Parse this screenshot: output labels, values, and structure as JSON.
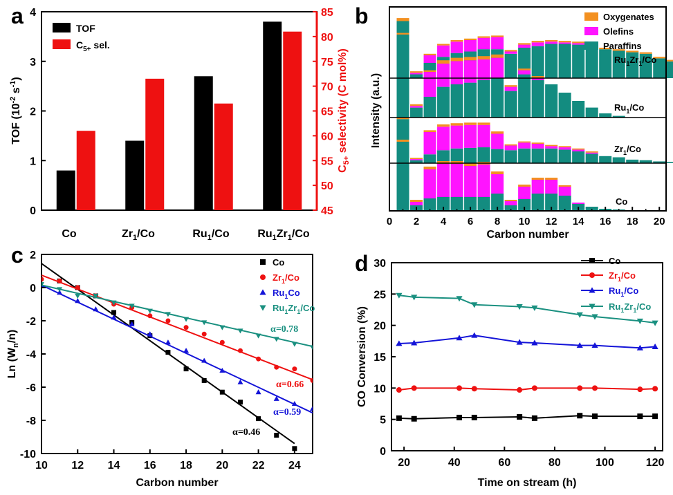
{
  "chart_data": [
    {
      "panel": "a",
      "type": "bar",
      "categories": [
        "Co",
        "Zr1/Co",
        "Ru1/Co",
        "Ru1Zr1/Co"
      ],
      "series": [
        {
          "name": "TOF",
          "axis": "left",
          "color": "#000000",
          "values": [
            0.8,
            1.4,
            2.7,
            3.8
          ]
        },
        {
          "name": "C5+ sel.",
          "axis": "right",
          "color": "#ee1111",
          "values": [
            61.0,
            71.5,
            66.5,
            81.0
          ]
        }
      ],
      "ylabel": "TOF (10-2 s-1)",
      "ylabel_right": "C5+ selectivity (C mol%)",
      "ylim": [
        0,
        4
      ],
      "ylim_right": [
        45,
        85
      ],
      "yticks": [
        "0",
        "1",
        "2",
        "3",
        "4"
      ],
      "yticks_right": [
        "45",
        "50",
        "55",
        "60",
        "65",
        "70",
        "75",
        "80",
        "85"
      ],
      "legend": "top-left"
    },
    {
      "panel": "b",
      "type": "bar",
      "stacked": true,
      "xlabel": "Carbon number",
      "ylabel": "Intensity (a.u.)",
      "xlim": [
        0,
        20.5
      ],
      "xticks": [
        "0",
        "2",
        "4",
        "6",
        "8",
        "10",
        "12",
        "14",
        "16",
        "18",
        "20"
      ],
      "legend": "top-right",
      "components": [
        {
          "name": "Oxygenates",
          "color": "#f39020"
        },
        {
          "name": "Olefins",
          "color": "#ff14ff"
        },
        {
          "name": "Paraffins",
          "color": "#138c80"
        }
      ],
      "catalysts": [
        {
          "name": "Ru1Zr1/Co",
          "paraffins": [
            0.75,
            0.05,
            0.2,
            0.28,
            0.33,
            0.35,
            0.38,
            0.38,
            0.32,
            0.4,
            0.42,
            0.45,
            0.45,
            0.44,
            0.42,
            0.38,
            0.36,
            0.34,
            0.32,
            0.26,
            0.22
          ],
          "olefins": [
            0.0,
            0.02,
            0.1,
            0.15,
            0.15,
            0.15,
            0.15,
            0.16,
            0.03,
            0.04,
            0.05,
            0.03,
            0.02,
            0.02,
            0.0,
            0.0,
            0.0,
            0.0,
            0.0,
            0.0,
            0.0
          ],
          "oxygenates": [
            0.04,
            0.02,
            0.02,
            0.02,
            0.02,
            0.02,
            0.02,
            0.02,
            0.02,
            0.02,
            0.02,
            0.02,
            0.02,
            0.02,
            0.02,
            0.02,
            0.02,
            0.02,
            0.02,
            0.02,
            0.02
          ]
        },
        {
          "name": "Ru1/Co",
          "paraffins": [
            1.0,
            0.12,
            0.25,
            0.37,
            0.4,
            0.42,
            0.45,
            0.48,
            0.32,
            0.52,
            0.45,
            0.4,
            0.3,
            0.2,
            0.12,
            0.05,
            0.02,
            0.0,
            0.0,
            0.0,
            0.0
          ],
          "olefins": [
            0.0,
            0.02,
            0.3,
            0.28,
            0.28,
            0.27,
            0.25,
            0.24,
            0.05,
            0.05,
            0.03,
            0.0,
            0.0,
            0.0,
            0.0,
            0.0,
            0.0,
            0.0,
            0.0,
            0.0,
            0.0
          ],
          "oxygenates": [
            0.02,
            0.02,
            0.02,
            0.04,
            0.04,
            0.04,
            0.04,
            0.04,
            0.02,
            0.02,
            0.02,
            0.0,
            0.0,
            0.0,
            0.0,
            0.0,
            0.0,
            0.0,
            0.0,
            0.0,
            0.0
          ]
        },
        {
          "name": "Zr1/Co",
          "paraffins": [
            0.75,
            0.05,
            0.15,
            0.22,
            0.25,
            0.26,
            0.27,
            0.24,
            0.22,
            0.25,
            0.25,
            0.25,
            0.23,
            0.2,
            0.16,
            0.12,
            0.1,
            0.06,
            0.05,
            0.03,
            0.02
          ],
          "olefins": [
            0.0,
            0.02,
            0.38,
            0.4,
            0.39,
            0.39,
            0.38,
            0.26,
            0.08,
            0.1,
            0.08,
            0.04,
            0.04,
            0.03,
            0.02,
            0.0,
            0.0,
            0.0,
            0.0,
            0.0,
            0.0
          ],
          "oxygenates": [
            0.03,
            0.02,
            0.03,
            0.04,
            0.04,
            0.04,
            0.04,
            0.04,
            0.02,
            0.02,
            0.02,
            0.02,
            0.02,
            0.02,
            0.02,
            0.0,
            0.0,
            0.0,
            0.0,
            0.0,
            0.0
          ]
        },
        {
          "name": "Co",
          "paraffins": [
            1.0,
            0.08,
            0.18,
            0.2,
            0.2,
            0.2,
            0.2,
            0.25,
            0.08,
            0.17,
            0.25,
            0.25,
            0.22,
            0.1,
            0.06,
            0.03,
            0.02,
            0.0,
            0.0,
            0.0,
            0.0
          ],
          "olefins": [
            0.0,
            0.05,
            0.42,
            0.48,
            0.48,
            0.45,
            0.47,
            0.28,
            0.06,
            0.18,
            0.2,
            0.2,
            0.13,
            0.02,
            0.0,
            0.0,
            0.0,
            0.0,
            0.0,
            0.0,
            0.0
          ],
          "oxygenates": [
            0.03,
            0.03,
            0.04,
            0.04,
            0.04,
            0.04,
            0.04,
            0.04,
            0.02,
            0.03,
            0.03,
            0.03,
            0.02,
            0.0,
            0.0,
            0.0,
            0.0,
            0.0,
            0.0,
            0.0,
            0.0
          ]
        }
      ]
    },
    {
      "panel": "c",
      "type": "scatter",
      "xlabel": "Carbon number",
      "ylabel": "Ln (Wn/n)",
      "xlim": [
        10,
        25
      ],
      "ylim": [
        -10,
        2
      ],
      "xticks": [
        "10",
        "12",
        "14",
        "16",
        "18",
        "20",
        "22",
        "24"
      ],
      "yticks": [
        "2",
        "0",
        "-2",
        "-4",
        "-6",
        "-8",
        "-10"
      ],
      "legend": "top-right",
      "series": [
        {
          "name": "Co",
          "color": "#000000",
          "marker": "square",
          "x": [
            11,
            12,
            13,
            14,
            15,
            16,
            17,
            18,
            19,
            20,
            21,
            22,
            23,
            24
          ],
          "y": [
            0.4,
            0.0,
            -0.5,
            -1.5,
            -2.1,
            -2.9,
            -3.9,
            -4.9,
            -5.6,
            -6.3,
            -6.9,
            -7.9,
            -8.9,
            -9.7
          ],
          "fit": [
            [
              10,
              1.45
            ],
            [
              24,
              -9.4
            ]
          ],
          "alpha_label": "α=0.46"
        },
        {
          "name": "Zr1/Co",
          "color": "#ee1111",
          "marker": "circle",
          "x": [
            10,
            11,
            12,
            13,
            14,
            15,
            16,
            17,
            18,
            19,
            20,
            21,
            22,
            23,
            24,
            25
          ],
          "y": [
            0.5,
            0.4,
            0.0,
            -0.5,
            -1.0,
            -1.2,
            -1.7,
            -2.0,
            -2.4,
            -2.8,
            -3.3,
            -3.8,
            -4.3,
            -4.8,
            -4.9,
            -5.6
          ],
          "fit": [
            [
              10,
              0.75
            ],
            [
              25,
              -5.55
            ]
          ],
          "alpha_label": "α=0.66"
        },
        {
          "name": "Ru1Co",
          "color": "#1414d8",
          "marker": "triangle-up",
          "x": [
            10,
            11,
            12,
            13,
            14,
            15,
            16,
            17,
            18,
            19,
            20,
            21,
            22,
            23,
            24,
            25
          ],
          "y": [
            0.1,
            -0.3,
            -0.8,
            -1.3,
            -1.8,
            -2.2,
            -2.8,
            -3.3,
            -3.8,
            -4.4,
            -5.0,
            -5.7,
            -6.3,
            -6.7,
            -7.0,
            -7.3
          ],
          "fit": [
            [
              10,
              0.15
            ],
            [
              25,
              -7.55
            ]
          ],
          "alpha_label": "α=0.59"
        },
        {
          "name": "Ru1Zr1/Co",
          "color": "#1a9080",
          "marker": "triangle-down",
          "x": [
            10,
            11,
            12,
            13,
            14,
            15,
            16,
            17,
            18,
            19,
            20,
            21,
            22,
            23,
            24,
            25
          ],
          "y": [
            0.2,
            -0.1,
            -0.5,
            -0.5,
            -0.9,
            -1.1,
            -1.4,
            -1.6,
            -1.9,
            -2.1,
            -2.4,
            -2.6,
            -2.9,
            -3.1,
            -3.4,
            -3.6
          ],
          "fit": [
            [
              10,
              0.15
            ],
            [
              25,
              -3.55
            ]
          ],
          "alpha_label": "α=0.78"
        }
      ]
    },
    {
      "panel": "d",
      "type": "line",
      "xlabel": "Time on stream (h)",
      "ylabel": "CO Conversion (%)",
      "xlim": [
        15,
        123
      ],
      "ylim": [
        0,
        30
      ],
      "xticks": [
        "20",
        "40",
        "60",
        "80",
        "100",
        "120"
      ],
      "yticks": [
        "0",
        "5",
        "10",
        "15",
        "20",
        "25",
        "30"
      ],
      "legend": "top-right",
      "series": [
        {
          "name": "Co",
          "color": "#000000",
          "marker": "square",
          "x": [
            18,
            24,
            42,
            48,
            66,
            72,
            90,
            96,
            114,
            120
          ],
          "y": [
            5.2,
            5.1,
            5.3,
            5.3,
            5.4,
            5.2,
            5.6,
            5.5,
            5.5,
            5.5
          ]
        },
        {
          "name": "Zr1/Co",
          "color": "#ee1111",
          "marker": "circle",
          "x": [
            18,
            24,
            42,
            48,
            66,
            72,
            90,
            96,
            114,
            120
          ],
          "y": [
            9.7,
            10.0,
            10.0,
            9.9,
            9.7,
            10.0,
            10.0,
            10.0,
            9.8,
            9.9
          ]
        },
        {
          "name": "Ru1/Co",
          "color": "#1414d8",
          "marker": "triangle-up",
          "x": [
            18,
            24,
            42,
            48,
            66,
            72,
            90,
            96,
            114,
            120
          ],
          "y": [
            17.1,
            17.2,
            18.0,
            18.4,
            17.3,
            17.2,
            16.8,
            16.8,
            16.4,
            16.6
          ]
        },
        {
          "name": "Ru1Zr1/Co",
          "color": "#1a9080",
          "marker": "triangle-down",
          "x": [
            18,
            24,
            42,
            48,
            66,
            72,
            90,
            96,
            114,
            120
          ],
          "y": [
            24.8,
            24.5,
            24.3,
            23.3,
            23.0,
            22.8,
            21.7,
            21.4,
            20.7,
            20.4
          ]
        }
      ]
    }
  ]
}
